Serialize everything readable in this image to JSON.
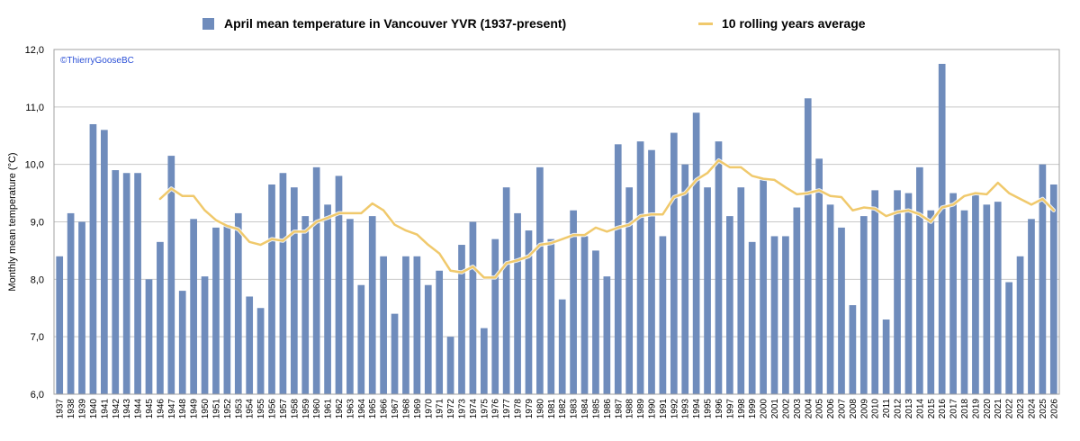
{
  "chart_data": {
    "type": "bar",
    "title": "",
    "credit": "©ThierryGooseBC",
    "ylabel": "Monthly mean temperature (°C)",
    "xlabel": "",
    "ylim": [
      6.0,
      12.0
    ],
    "yticks": [
      "6,0",
      "7,0",
      "8,0",
      "9,0",
      "10,0",
      "11,0",
      "12,0"
    ],
    "grid": true,
    "legend_position": "top",
    "colors": {
      "bar": "#6f8cbc",
      "line": "#f0c96c",
      "grid": "#c8c8c8",
      "credit": "#2a4fd6"
    },
    "categories": [
      "1937",
      "1938",
      "1939",
      "1940",
      "1941",
      "1942",
      "1943",
      "1944",
      "1945",
      "1946",
      "1947",
      "1948",
      "1949",
      "1950",
      "1951",
      "1952",
      "1953",
      "1954",
      "1955",
      "1956",
      "1957",
      "1958",
      "1959",
      "1960",
      "1961",
      "1962",
      "1963",
      "1964",
      "1965",
      "1966",
      "1967",
      "1968",
      "1969",
      "1970",
      "1971",
      "1972",
      "1973",
      "1974",
      "1975",
      "1976",
      "1977",
      "1978",
      "1979",
      "1980",
      "1981",
      "1982",
      "1983",
      "1984",
      "1985",
      "1986",
      "1987",
      "1988",
      "1989",
      "1990",
      "1991",
      "1992",
      "1993",
      "1994",
      "1995",
      "1996",
      "1997",
      "1998",
      "1999",
      "2000",
      "2001",
      "2002",
      "2003",
      "2004",
      "2005",
      "2006",
      "2007",
      "2008",
      "2009",
      "2010",
      "2011",
      "2012",
      "2013",
      "2014",
      "2015",
      "2016",
      "2017",
      "2018",
      "2019",
      "2020",
      "2021",
      "2022",
      "2023",
      "2024",
      "2025",
      "2026"
    ],
    "series": [
      {
        "name": "April mean temperature in Vancouver YVR (1937-present)",
        "type": "bar",
        "values": [
          8.4,
          9.15,
          9.0,
          10.7,
          10.6,
          9.9,
          9.85,
          9.85,
          8.0,
          8.65,
          10.15,
          7.8,
          9.05,
          8.05,
          8.9,
          8.95,
          9.15,
          7.7,
          7.5,
          9.65,
          9.85,
          9.6,
          9.1,
          9.95,
          9.3,
          9.8,
          9.05,
          7.9,
          9.1,
          8.4,
          7.4,
          8.4,
          8.4,
          7.9,
          8.15,
          7.0,
          8.6,
          9.0,
          7.15,
          8.7,
          9.6,
          9.15,
          8.85,
          9.95,
          8.7,
          7.65,
          9.2,
          8.75,
          8.5,
          8.05,
          10.35,
          9.6,
          10.4,
          10.25,
          8.75,
          10.55,
          10.0,
          10.9,
          9.6,
          10.4,
          9.1,
          9.6,
          8.65,
          9.75,
          8.75,
          8.75,
          9.25,
          11.15,
          10.1,
          9.3,
          8.9,
          7.55,
          9.1,
          9.55,
          7.3,
          9.55,
          9.5,
          9.95,
          9.2,
          11.75,
          9.5,
          9.2,
          9.5,
          9.3,
          9.35,
          7.95,
          8.4,
          9.05,
          10.0,
          9.65
        ]
      },
      {
        "name": "10 rolling years average",
        "type": "line",
        "x": [
          "1946",
          "1947",
          "1948",
          "1949",
          "1950",
          "1951",
          "1952",
          "1953",
          "1954",
          "1955",
          "1956",
          "1957",
          "1958",
          "1959",
          "1960",
          "1961",
          "1962",
          "1963",
          "1964",
          "1965",
          "1966",
          "1967",
          "1968",
          "1969",
          "1970",
          "1971",
          "1972",
          "1973",
          "1974",
          "1975",
          "1976",
          "1977",
          "1978",
          "1979",
          "1980",
          "1981",
          "1982",
          "1983",
          "1984",
          "1985",
          "1986",
          "1987",
          "1988",
          "1989",
          "1990",
          "1991",
          "1992",
          "1993",
          "1994",
          "1995",
          "1996",
          "1997",
          "1998",
          "1999",
          "2000",
          "2001",
          "2002",
          "2003",
          "2004",
          "2005",
          "2006",
          "2007",
          "2008",
          "2009",
          "2010",
          "2011",
          "2012",
          "2013",
          "2014",
          "2015",
          "2016",
          "2017",
          "2018",
          "2019",
          "2020",
          "2021",
          "2022",
          "2023",
          "2024",
          "2025",
          "2026"
        ],
        "values": [
          9.4,
          9.58,
          9.45,
          9.45,
          9.2,
          9.03,
          8.93,
          8.87,
          8.65,
          8.6,
          8.7,
          8.67,
          8.83,
          8.83,
          9.0,
          9.07,
          9.15,
          9.15,
          9.15,
          9.32,
          9.2,
          8.95,
          8.85,
          8.78,
          8.6,
          8.45,
          8.15,
          8.12,
          8.22,
          8.03,
          8.03,
          8.28,
          8.33,
          8.4,
          8.6,
          8.63,
          8.7,
          8.77,
          8.77,
          8.9,
          8.83,
          8.9,
          8.95,
          9.1,
          9.13,
          9.13,
          9.43,
          9.5,
          9.73,
          9.85,
          10.07,
          9.95,
          9.95,
          9.8,
          9.75,
          9.73,
          9.6,
          9.48,
          9.5,
          9.55,
          9.45,
          9.43,
          9.2,
          9.25,
          9.23,
          9.1,
          9.17,
          9.2,
          9.13,
          9.0,
          9.25,
          9.3,
          9.45,
          9.5,
          9.48,
          9.68,
          9.5,
          9.4,
          9.3,
          9.4,
          9.2
        ]
      }
    ]
  }
}
